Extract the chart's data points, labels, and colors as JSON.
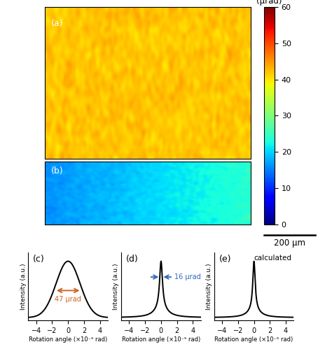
{
  "colorbar_label": "(μrad)",
  "colorbar_ticks": [
    0,
    10,
    20,
    30,
    40,
    50,
    60
  ],
  "colorbar_vmin": 0,
  "colorbar_vmax": 60,
  "panel_a_label": "(a)",
  "panel_b_label": "(b)",
  "panel_c_label": "(c)",
  "panel_d_label": "(d)",
  "panel_e_label": "(e)",
  "panel_e_annotation": "calculated",
  "scalebar_text": "200 μm",
  "xlabel": "Rotation angle (×10⁻⁵ rad)",
  "ylabel": "Intensity (a.u.)",
  "xlim": [
    -5,
    5
  ],
  "xticks": [
    -4,
    -2,
    0,
    2,
    4
  ],
  "panel_c_arrow_text": "47 μrad",
  "panel_c_arrow_color": "#CC6622",
  "panel_d_arrow_text": "16 μrad",
  "panel_d_arrow_color": "#3366BB",
  "image_a_mean": 42,
  "image_a_std": 5,
  "image_b_mean": 16,
  "image_b_std": 3,
  "background_color": "#ffffff",
  "curve_linewidth": 1.4,
  "gaussian_sigma_c": 1.5,
  "lorentzian_gamma_d_broad": 1.0,
  "lorentzian_gamma_d_narrow": 0.22,
  "lorentzian_gamma_e_broad": 0.9,
  "lorentzian_gamma_e_narrow": 0.18
}
